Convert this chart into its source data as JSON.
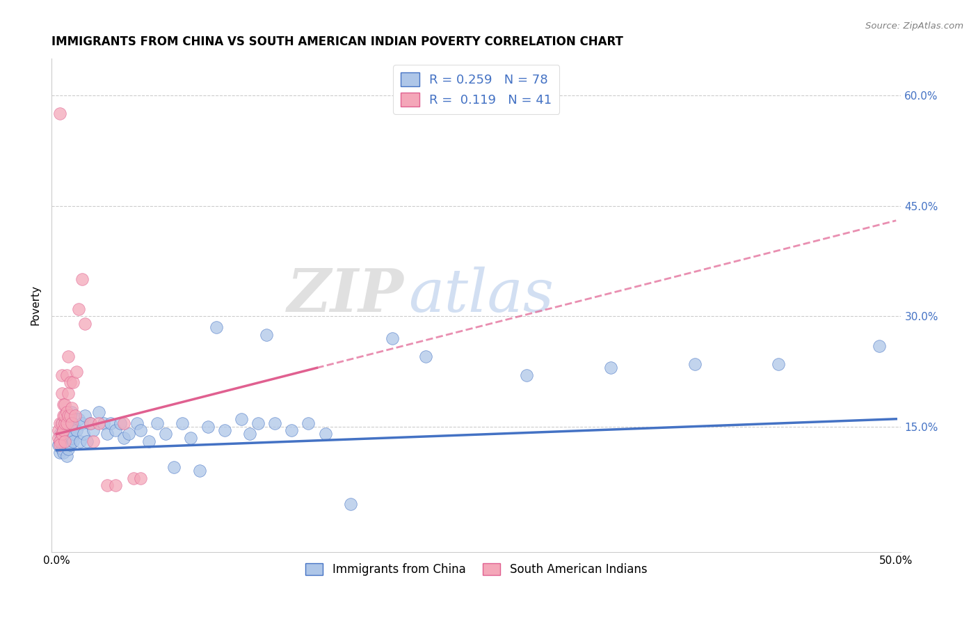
{
  "title": "IMMIGRANTS FROM CHINA VS SOUTH AMERICAN INDIAN POVERTY CORRELATION CHART",
  "source": "Source: ZipAtlas.com",
  "ylabel": "Poverty",
  "xlim": [
    0.0,
    0.5
  ],
  "ylim": [
    -0.02,
    0.65
  ],
  "legend_R1": "0.259",
  "legend_N1": "78",
  "legend_R2": "0.119",
  "legend_N2": "41",
  "watermark_zip": "ZIP",
  "watermark_atlas": "atlas",
  "color_china": "#aec6e8",
  "color_south": "#f4a7b9",
  "line_color_china": "#4472c4",
  "line_color_south": "#e06090",
  "china_intercept": 0.118,
  "china_slope": 0.085,
  "south_intercept": 0.14,
  "south_slope": 0.58,
  "south_line_end": 0.155,
  "china_points": [
    [
      0.001,
      0.125
    ],
    [
      0.002,
      0.13
    ],
    [
      0.002,
      0.115
    ],
    [
      0.002,
      0.14
    ],
    [
      0.003,
      0.12
    ],
    [
      0.003,
      0.135
    ],
    [
      0.003,
      0.155
    ],
    [
      0.003,
      0.13
    ],
    [
      0.004,
      0.13
    ],
    [
      0.004,
      0.145
    ],
    [
      0.004,
      0.12
    ],
    [
      0.004,
      0.115
    ],
    [
      0.005,
      0.125
    ],
    [
      0.005,
      0.135
    ],
    [
      0.005,
      0.155
    ],
    [
      0.005,
      0.14
    ],
    [
      0.006,
      0.14
    ],
    [
      0.006,
      0.16
    ],
    [
      0.006,
      0.125
    ],
    [
      0.006,
      0.11
    ],
    [
      0.007,
      0.15
    ],
    [
      0.007,
      0.13
    ],
    [
      0.007,
      0.165
    ],
    [
      0.007,
      0.12
    ],
    [
      0.008,
      0.14
    ],
    [
      0.008,
      0.16
    ],
    [
      0.008,
      0.125
    ],
    [
      0.009,
      0.15
    ],
    [
      0.009,
      0.135
    ],
    [
      0.009,
      0.17
    ],
    [
      0.01,
      0.155
    ],
    [
      0.01,
      0.14
    ],
    [
      0.01,
      0.13
    ],
    [
      0.012,
      0.145
    ],
    [
      0.013,
      0.16
    ],
    [
      0.014,
      0.13
    ],
    [
      0.015,
      0.155
    ],
    [
      0.016,
      0.14
    ],
    [
      0.017,
      0.165
    ],
    [
      0.018,
      0.13
    ],
    [
      0.02,
      0.155
    ],
    [
      0.022,
      0.145
    ],
    [
      0.025,
      0.17
    ],
    [
      0.028,
      0.155
    ],
    [
      0.03,
      0.14
    ],
    [
      0.032,
      0.155
    ],
    [
      0.035,
      0.145
    ],
    [
      0.038,
      0.155
    ],
    [
      0.04,
      0.135
    ],
    [
      0.043,
      0.14
    ],
    [
      0.048,
      0.155
    ],
    [
      0.05,
      0.145
    ],
    [
      0.055,
      0.13
    ],
    [
      0.06,
      0.155
    ],
    [
      0.065,
      0.14
    ],
    [
      0.07,
      0.095
    ],
    [
      0.075,
      0.155
    ],
    [
      0.08,
      0.135
    ],
    [
      0.085,
      0.09
    ],
    [
      0.09,
      0.15
    ],
    [
      0.095,
      0.285
    ],
    [
      0.1,
      0.145
    ],
    [
      0.11,
      0.16
    ],
    [
      0.115,
      0.14
    ],
    [
      0.12,
      0.155
    ],
    [
      0.125,
      0.275
    ],
    [
      0.13,
      0.155
    ],
    [
      0.14,
      0.145
    ],
    [
      0.15,
      0.155
    ],
    [
      0.16,
      0.14
    ],
    [
      0.175,
      0.045
    ],
    [
      0.2,
      0.27
    ],
    [
      0.22,
      0.245
    ],
    [
      0.28,
      0.22
    ],
    [
      0.33,
      0.23
    ],
    [
      0.38,
      0.235
    ],
    [
      0.43,
      0.235
    ],
    [
      0.49,
      0.26
    ]
  ],
  "south_points": [
    [
      0.001,
      0.145
    ],
    [
      0.001,
      0.135
    ],
    [
      0.002,
      0.13
    ],
    [
      0.002,
      0.125
    ],
    [
      0.002,
      0.155
    ],
    [
      0.003,
      0.14
    ],
    [
      0.003,
      0.155
    ],
    [
      0.003,
      0.22
    ],
    [
      0.003,
      0.195
    ],
    [
      0.004,
      0.145
    ],
    [
      0.004,
      0.165
    ],
    [
      0.004,
      0.18
    ],
    [
      0.005,
      0.155
    ],
    [
      0.005,
      0.165
    ],
    [
      0.005,
      0.18
    ],
    [
      0.005,
      0.13
    ],
    [
      0.006,
      0.17
    ],
    [
      0.006,
      0.22
    ],
    [
      0.006,
      0.155
    ],
    [
      0.007,
      0.195
    ],
    [
      0.007,
      0.245
    ],
    [
      0.007,
      0.165
    ],
    [
      0.008,
      0.21
    ],
    [
      0.008,
      0.165
    ],
    [
      0.009,
      0.175
    ],
    [
      0.009,
      0.155
    ],
    [
      0.01,
      0.21
    ],
    [
      0.011,
      0.165
    ],
    [
      0.012,
      0.225
    ],
    [
      0.013,
      0.31
    ],
    [
      0.015,
      0.35
    ],
    [
      0.017,
      0.29
    ],
    [
      0.02,
      0.155
    ],
    [
      0.022,
      0.13
    ],
    [
      0.025,
      0.155
    ],
    [
      0.03,
      0.07
    ],
    [
      0.035,
      0.07
    ],
    [
      0.04,
      0.155
    ],
    [
      0.046,
      0.08
    ],
    [
      0.05,
      0.08
    ],
    [
      0.002,
      0.575
    ]
  ]
}
